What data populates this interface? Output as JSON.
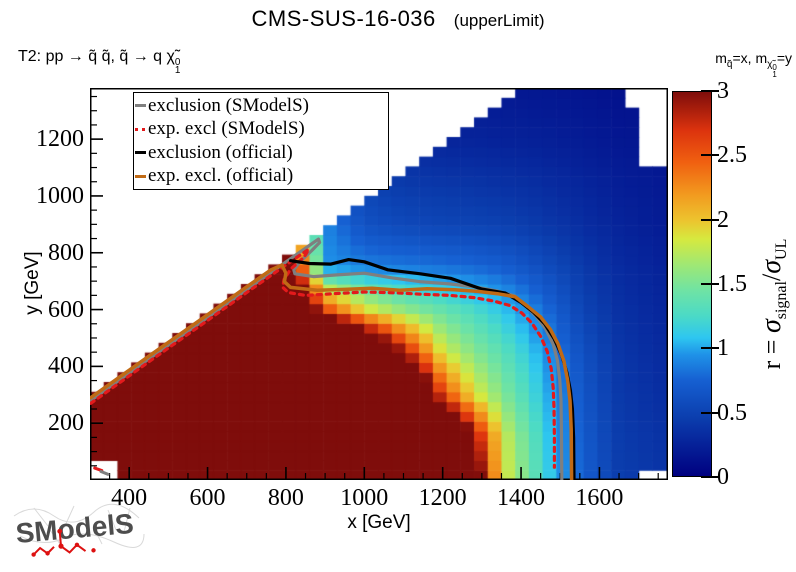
{
  "header": {
    "title_main": "CMS-SUS-16-036",
    "title_paren": "(upperLimit)"
  },
  "process": {
    "text": "T2: pp  →  q̃ q̃,  q̃  →  q χ̃",
    "chi_sup": "0",
    "chi_sub": "1"
  },
  "mass_note": {
    "m": "m",
    "m_sub": "q̃",
    "mid": "=x, ",
    "m2": "m",
    "chi": "χ̃",
    "chi_sup": "0",
    "chi_sub": "1",
    "tail": "=y"
  },
  "legend": {
    "entries": [
      {
        "label": "exclusion (SModelS)",
        "color": "#7f7f7f",
        "style": "solid"
      },
      {
        "label": "exp. excl (SModelS)",
        "color": "#e31a1c",
        "style": "dashed"
      },
      {
        "label": "exclusion (official)",
        "color": "#000000",
        "style": "solid"
      },
      {
        "label": "exp. excl. (official)",
        "color": "#c06a15",
        "style": "solid"
      }
    ]
  },
  "axes": {
    "x_title": "x [GeV]",
    "y_title": "y [GeV]"
  },
  "colorbar": {
    "title_prefix": "r = ",
    "sigma": "σ",
    "sub_signal": "signal",
    "slash": "/",
    "sigma2": "σ",
    "sub_ul": "UL",
    "tick_values": [
      0,
      0.5,
      1,
      1.5,
      2,
      2.5,
      3
    ],
    "tick_labels": [
      "0",
      "0.5",
      "1",
      "1.5",
      "2",
      "2.5",
      "3"
    ]
  },
  "logo": {
    "text": "SModelS"
  },
  "chart_data": {
    "type": "heatmap",
    "title": "CMS-SUS-16-036 (upperLimit)",
    "xlabel": "x [GeV]",
    "ylabel": "y [GeV]",
    "zlabel": "r = sigma_signal/sigma_UL",
    "xlim": [
      300,
      1775
    ],
    "ylim": [
      0,
      1380
    ],
    "zlim": [
      0,
      3
    ],
    "x_ticks": [
      400,
      600,
      800,
      1000,
      1200,
      1400,
      1600
    ],
    "y_ticks": [
      200,
      400,
      600,
      800,
      1000,
      1200
    ],
    "x_minor_step": 50,
    "y_minor_step": 50,
    "cell_size_gev": [
      35,
      34.5
    ],
    "diagonal_no_data": "no bins above y = x - 20",
    "no_data_regions": [
      {
        "desc": "top-right notch",
        "x_min": 1650,
        "y_min": 1295
      },
      {
        "desc": "top-right notch wide",
        "x_min": 1692,
        "y_min": 1090
      },
      {
        "desc": "bottom-right corner",
        "x_min": 1695,
        "y_max": 42
      },
      {
        "desc": "bottom-left corner bin",
        "x_max": 366,
        "y_max": 55
      }
    ],
    "palette_stops": [
      [
        0.0,
        "#000080"
      ],
      [
        0.45,
        "#0B3DAD"
      ],
      [
        0.75,
        "#1660D2"
      ],
      [
        0.95,
        "#1F93E8"
      ],
      [
        1.08,
        "#2EC6F0"
      ],
      [
        1.25,
        "#4BDAC6"
      ],
      [
        1.45,
        "#6FE3A4"
      ],
      [
        1.65,
        "#9FE874"
      ],
      [
        1.85,
        "#D6E93F"
      ],
      [
        2.0,
        "#EDC32E"
      ],
      [
        2.2,
        "#F29A1F"
      ],
      [
        2.45,
        "#F06010"
      ],
      [
        2.7,
        "#DC330E"
      ],
      [
        3.0,
        "#7F0D0B"
      ]
    ],
    "value_anchors": {
      "x": [
        300,
        700,
        900,
        1000,
        1100,
        1200,
        1280,
        1350,
        1420,
        1500,
        1560,
        1650,
        1775
      ],
      "y": [
        0,
        150,
        300,
        450,
        600,
        750,
        900,
        1050,
        1200,
        1380
      ],
      "r": [
        [
          6,
          6,
          6,
          6,
          5.5,
          4.8,
          3.4,
          1.9,
          1.45,
          0.95,
          0.72,
          0.45,
          0.38
        ],
        [
          6,
          6,
          6,
          6,
          5.2,
          4.4,
          3.0,
          1.85,
          1.4,
          0.92,
          0.7,
          0.44,
          0.36
        ],
        [
          6,
          6,
          6,
          5.5,
          4.6,
          2.6,
          1.9,
          1.55,
          1.25,
          0.88,
          0.66,
          0.42,
          0.33
        ],
        [
          6,
          6,
          5.5,
          4.2,
          2.9,
          1.85,
          1.55,
          1.35,
          1.12,
          0.8,
          0.6,
          0.4,
          0.3
        ],
        [
          6,
          6,
          2.6,
          1.9,
          1.6,
          1.4,
          1.25,
          1.1,
          0.92,
          0.68,
          0.5,
          0.36,
          0.27
        ],
        [
          6,
          6,
          0.95,
          0.88,
          0.85,
          0.82,
          0.78,
          0.73,
          0.64,
          0.52,
          0.42,
          0.32,
          0.24
        ],
        [
          6,
          4,
          0.9,
          0.62,
          0.55,
          0.52,
          0.5,
          0.48,
          0.44,
          0.38,
          0.33,
          0.26,
          0.2
        ],
        [
          4,
          2,
          0.7,
          0.5,
          0.42,
          0.4,
          0.38,
          0.36,
          0.34,
          0.3,
          0.27,
          0.22,
          0.18
        ],
        [
          3,
          1.5,
          0.5,
          0.38,
          0.3,
          0.27,
          0.26,
          0.25,
          0.24,
          0.22,
          0.2,
          0.17,
          0.15
        ],
        [
          2,
          1.0,
          0.35,
          0.28,
          0.22,
          0.2,
          0.19,
          0.18,
          0.17,
          0.16,
          0.15,
          0.13,
          0.12
        ]
      ]
    },
    "contours": [
      {
        "name": "exclusion_smodels",
        "label": "exclusion (SModelS)",
        "color": "#7f7f7f",
        "style": "solid",
        "width": 3.2,
        "points": [
          [
            302,
            280
          ],
          [
            450,
            426
          ],
          [
            600,
            572
          ],
          [
            700,
            670
          ],
          [
            790,
            758
          ],
          [
            850,
            816
          ],
          [
            883,
            848
          ],
          [
            886,
            836
          ],
          [
            866,
            808
          ],
          [
            836,
            768
          ],
          [
            820,
            740
          ],
          [
            823,
            726
          ],
          [
            870,
            716
          ],
          [
            930,
            722
          ],
          [
            1000,
            728
          ],
          [
            1070,
            712
          ],
          [
            1143,
            698
          ],
          [
            1220,
            690
          ],
          [
            1290,
            678
          ],
          [
            1340,
            665
          ],
          [
            1383,
            648
          ],
          [
            1410,
            615
          ],
          [
            1438,
            578
          ],
          [
            1463,
            532
          ],
          [
            1482,
            478
          ],
          [
            1493,
            420
          ],
          [
            1499,
            350
          ],
          [
            1502,
            280
          ],
          [
            1503,
            180
          ],
          [
            1504,
            0
          ]
        ]
      },
      {
        "name": "expected_exclusion_smodels",
        "label": "exp. excl (SModelS)",
        "color": "#e31a1c",
        "style": "dashed",
        "width": 3.2,
        "points": [
          [
            302,
            270
          ],
          [
            450,
            416
          ],
          [
            600,
            562
          ],
          [
            700,
            660
          ],
          [
            780,
            738
          ],
          [
            830,
            786
          ],
          [
            858,
            812
          ],
          [
            846,
            784
          ],
          [
            812,
            742
          ],
          [
            795,
            706
          ],
          [
            792,
            678
          ],
          [
            806,
            660
          ],
          [
            850,
            650
          ],
          [
            920,
            656
          ],
          [
            1000,
            662
          ],
          [
            1080,
            659
          ],
          [
            1143,
            654
          ],
          [
            1220,
            650
          ],
          [
            1280,
            642
          ],
          [
            1330,
            630
          ],
          [
            1372,
            614
          ],
          [
            1402,
            588
          ],
          [
            1428,
            552
          ],
          [
            1450,
            506
          ],
          [
            1467,
            452
          ],
          [
            1477,
            392
          ],
          [
            1482,
            325
          ],
          [
            1484,
            255
          ],
          [
            1485,
            150
          ],
          [
            1485,
            45
          ]
        ]
      },
      {
        "name": "exclusion_official",
        "label": "exclusion (official)",
        "color": "#000000",
        "style": "solid",
        "width": 3.2,
        "points": [
          [
            812,
            772
          ],
          [
            860,
            762
          ],
          [
            915,
            760
          ],
          [
            960,
            776
          ],
          [
            1000,
            768
          ],
          [
            1060,
            740
          ],
          [
            1143,
            726
          ],
          [
            1220,
            710
          ],
          [
            1300,
            672
          ],
          [
            1360,
            658
          ],
          [
            1400,
            625
          ],
          [
            1432,
            590
          ],
          [
            1460,
            550
          ],
          [
            1484,
            498
          ],
          [
            1504,
            438
          ],
          [
            1517,
            378
          ],
          [
            1526,
            315
          ],
          [
            1531,
            250
          ],
          [
            1534,
            150
          ],
          [
            1535,
            0
          ]
        ]
      },
      {
        "name": "expected_exclusion_official",
        "label": "exp. excl. (official)",
        "color": "#c06a15",
        "style": "solid",
        "width": 3.5,
        "points": [
          [
            302,
            290
          ],
          [
            450,
            436
          ],
          [
            600,
            582
          ],
          [
            700,
            680
          ],
          [
            762,
            740
          ],
          [
            790,
            757
          ],
          [
            800,
            728
          ],
          [
            796,
            698
          ],
          [
            812,
            678
          ],
          [
            880,
            668
          ],
          [
            950,
            671
          ],
          [
            1020,
            675
          ],
          [
            1090,
            668
          ],
          [
            1160,
            673
          ],
          [
            1230,
            670
          ],
          [
            1290,
            664
          ],
          [
            1340,
            656
          ],
          [
            1385,
            645
          ],
          [
            1418,
            610
          ],
          [
            1450,
            574
          ],
          [
            1475,
            530
          ],
          [
            1494,
            480
          ],
          [
            1509,
            420
          ],
          [
            1519,
            350
          ],
          [
            1525,
            280
          ],
          [
            1528,
            180
          ],
          [
            1529,
            0
          ]
        ]
      }
    ],
    "corner_marks": [
      {
        "color": "#e31a1c",
        "points": [
          [
            312,
            42
          ],
          [
            330,
            33
          ]
        ]
      },
      {
        "color": "#7f7f7f",
        "points": [
          [
            328,
            30
          ],
          [
            346,
            20
          ]
        ]
      }
    ],
    "legend_position": "top-left",
    "grid": false
  }
}
